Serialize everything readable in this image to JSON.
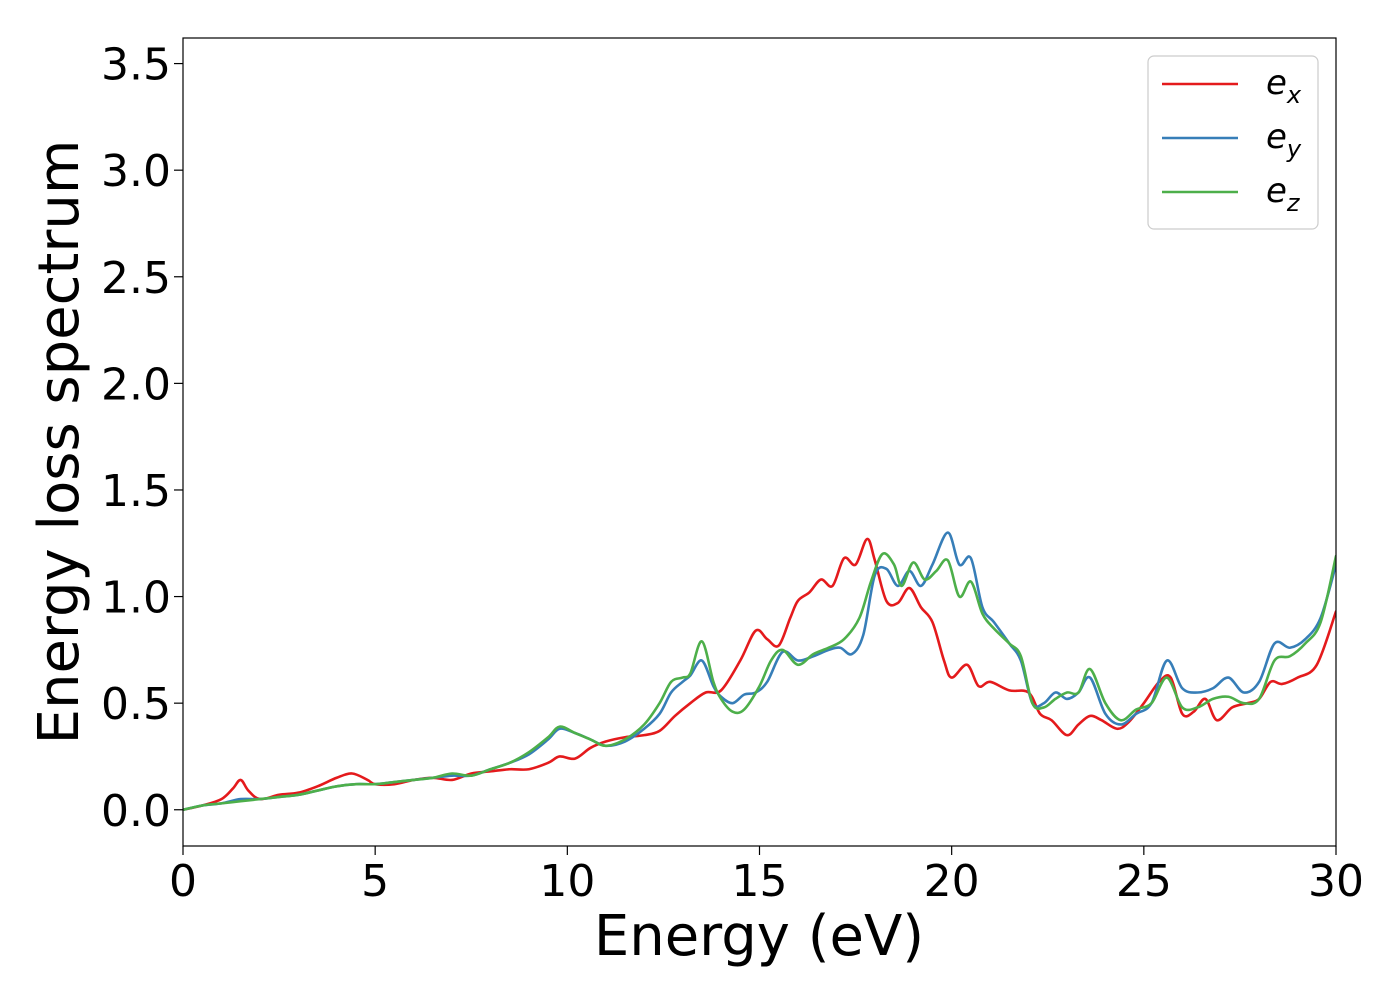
{
  "chart_data": {
    "type": "line",
    "xlabel": "Energy (eV)",
    "ylabel": "Energy loss spectrum",
    "xlim": [
      0,
      30
    ],
    "ylim": [
      -0.17,
      3.62
    ],
    "x_ticks": [
      0,
      5,
      10,
      15,
      20,
      25,
      30
    ],
    "x_tick_labels": [
      "0",
      "5",
      "10",
      "15",
      "20",
      "25",
      "30"
    ],
    "y_ticks": [
      0.0,
      0.5,
      1.0,
      1.5,
      2.0,
      2.5,
      3.0,
      3.5
    ],
    "y_tick_labels": [
      "0.0",
      "0.5",
      "1.0",
      "1.5",
      "2.0",
      "2.5",
      "3.0",
      "3.5"
    ],
    "grid": false,
    "legend_position": "top-right",
    "series": [
      {
        "name": "e",
        "subscript": "x",
        "color": "#e41a1c",
        "x": [
          0,
          0.5,
          1.0,
          1.3,
          1.5,
          1.7,
          2.0,
          2.5,
          3.0,
          3.5,
          4.0,
          4.4,
          4.8,
          5.0,
          5.5,
          6.0,
          6.5,
          7.0,
          7.5,
          8.0,
          8.5,
          9.0,
          9.5,
          9.8,
          10.2,
          10.6,
          11.0,
          11.5,
          12.0,
          12.4,
          12.8,
          13.2,
          13.6,
          14.0,
          14.5,
          14.9,
          15.2,
          15.5,
          15.8,
          16.0,
          16.3,
          16.6,
          16.9,
          17.2,
          17.5,
          17.8,
          18.0,
          18.3,
          18.6,
          18.9,
          19.2,
          19.5,
          19.8,
          20.0,
          20.4,
          20.7,
          21.0,
          21.5,
          22.0,
          22.3,
          22.6,
          23.0,
          23.3,
          23.6,
          23.9,
          24.3,
          24.6,
          25.0,
          25.4,
          25.7,
          26.0,
          26.3,
          26.6,
          26.9,
          27.3,
          27.7,
          28.0,
          28.3,
          28.6,
          29.0,
          29.5,
          30.0
        ],
        "y": [
          0.0,
          0.02,
          0.05,
          0.1,
          0.14,
          0.09,
          0.05,
          0.07,
          0.08,
          0.11,
          0.15,
          0.17,
          0.14,
          0.12,
          0.12,
          0.14,
          0.15,
          0.14,
          0.17,
          0.18,
          0.19,
          0.19,
          0.22,
          0.25,
          0.24,
          0.29,
          0.32,
          0.34,
          0.35,
          0.37,
          0.44,
          0.5,
          0.55,
          0.56,
          0.7,
          0.84,
          0.8,
          0.77,
          0.9,
          0.98,
          1.02,
          1.08,
          1.05,
          1.18,
          1.15,
          1.27,
          1.17,
          0.98,
          0.97,
          1.04,
          0.95,
          0.88,
          0.7,
          0.62,
          0.68,
          0.58,
          0.6,
          0.56,
          0.55,
          0.45,
          0.42,
          0.35,
          0.4,
          0.44,
          0.42,
          0.38,
          0.41,
          0.5,
          0.6,
          0.62,
          0.45,
          0.46,
          0.52,
          0.42,
          0.48,
          0.5,
          0.52,
          0.6,
          0.59,
          0.62,
          0.68,
          0.93
        ]
      },
      {
        "name": "e",
        "subscript": "y",
        "color": "#377eb8",
        "x": [
          0,
          0.5,
          1.0,
          1.5,
          2.0,
          2.5,
          3.0,
          3.5,
          4.0,
          4.5,
          5.0,
          5.5,
          6.0,
          6.5,
          7.0,
          7.5,
          8.0,
          8.5,
          9.0,
          9.5,
          9.8,
          10.2,
          10.6,
          11.0,
          11.5,
          12.0,
          12.4,
          12.7,
          13.0,
          13.2,
          13.5,
          13.8,
          14.0,
          14.3,
          14.6,
          14.9,
          15.2,
          15.6,
          16.0,
          16.4,
          16.8,
          17.1,
          17.4,
          17.7,
          18.0,
          18.3,
          18.6,
          18.9,
          19.2,
          19.5,
          19.9,
          20.2,
          20.5,
          20.8,
          21.1,
          21.5,
          21.8,
          22.1,
          22.4,
          22.7,
          23.0,
          23.3,
          23.6,
          24.0,
          24.4,
          24.8,
          25.2,
          25.6,
          26.0,
          26.4,
          26.8,
          27.2,
          27.6,
          28.0,
          28.4,
          28.8,
          29.2,
          29.6,
          30.0
        ],
        "y": [
          0.0,
          0.02,
          0.03,
          0.05,
          0.05,
          0.06,
          0.07,
          0.09,
          0.11,
          0.12,
          0.12,
          0.13,
          0.14,
          0.15,
          0.16,
          0.16,
          0.19,
          0.22,
          0.26,
          0.33,
          0.38,
          0.36,
          0.33,
          0.3,
          0.32,
          0.38,
          0.45,
          0.55,
          0.6,
          0.63,
          0.7,
          0.58,
          0.53,
          0.5,
          0.54,
          0.55,
          0.6,
          0.74,
          0.7,
          0.72,
          0.75,
          0.76,
          0.73,
          0.82,
          1.1,
          1.13,
          1.05,
          1.12,
          1.05,
          1.15,
          1.3,
          1.15,
          1.18,
          0.95,
          0.88,
          0.78,
          0.7,
          0.5,
          0.5,
          0.55,
          0.52,
          0.55,
          0.62,
          0.45,
          0.4,
          0.45,
          0.5,
          0.7,
          0.57,
          0.55,
          0.57,
          0.62,
          0.55,
          0.6,
          0.78,
          0.76,
          0.8,
          0.9,
          1.15
        ]
      },
      {
        "name": "e",
        "subscript": "z",
        "color": "#4daf4a",
        "x": [
          0,
          0.5,
          1.0,
          1.5,
          2.0,
          2.5,
          3.0,
          3.5,
          4.0,
          4.5,
          5.0,
          5.5,
          6.0,
          6.5,
          7.0,
          7.5,
          8.0,
          8.5,
          9.0,
          9.5,
          9.8,
          10.2,
          10.6,
          11.0,
          11.5,
          12.0,
          12.4,
          12.7,
          13.0,
          13.2,
          13.5,
          13.8,
          14.0,
          14.3,
          14.6,
          15.0,
          15.3,
          15.6,
          16.0,
          16.4,
          16.8,
          17.2,
          17.6,
          17.9,
          18.2,
          18.5,
          18.7,
          19.0,
          19.3,
          19.6,
          19.9,
          20.2,
          20.5,
          20.8,
          21.1,
          21.5,
          21.8,
          22.1,
          22.4,
          22.7,
          23.0,
          23.3,
          23.6,
          24.0,
          24.4,
          24.8,
          25.2,
          25.6,
          26.0,
          26.4,
          26.8,
          27.2,
          27.6,
          28.0,
          28.4,
          28.8,
          29.2,
          29.6,
          30.0
        ],
        "y": [
          0.0,
          0.02,
          0.03,
          0.04,
          0.05,
          0.06,
          0.07,
          0.09,
          0.11,
          0.12,
          0.12,
          0.13,
          0.14,
          0.15,
          0.17,
          0.16,
          0.19,
          0.22,
          0.27,
          0.34,
          0.39,
          0.36,
          0.33,
          0.3,
          0.33,
          0.4,
          0.5,
          0.6,
          0.62,
          0.64,
          0.79,
          0.6,
          0.52,
          0.46,
          0.47,
          0.58,
          0.7,
          0.75,
          0.68,
          0.73,
          0.76,
          0.8,
          0.9,
          1.07,
          1.2,
          1.15,
          1.05,
          1.16,
          1.08,
          1.12,
          1.17,
          1.0,
          1.07,
          0.92,
          0.85,
          0.78,
          0.72,
          0.5,
          0.48,
          0.52,
          0.55,
          0.55,
          0.66,
          0.5,
          0.42,
          0.47,
          0.5,
          0.62,
          0.48,
          0.48,
          0.52,
          0.53,
          0.5,
          0.52,
          0.7,
          0.72,
          0.78,
          0.88,
          1.19
        ]
      }
    ]
  }
}
